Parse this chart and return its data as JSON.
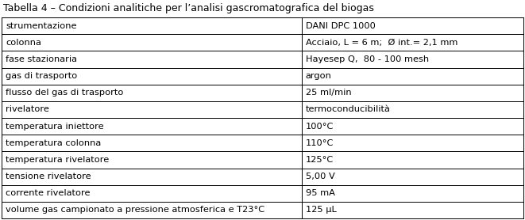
{
  "title": "Tabella 4 – Condizioni analitiche per l’analisi gascromatografica del biogas",
  "rows": [
    [
      "strumentazione",
      "DANI DPC 1000"
    ],
    [
      "colonna",
      "Acciaio, L = 6 m;  Ø int.= 2,1 mm"
    ],
    [
      "fase stazionaria",
      "Hayesep Q,  80 - 100 mesh"
    ],
    [
      "gas di trasporto",
      "argon"
    ],
    [
      "flusso del gas di trasporto",
      "25 ml/min"
    ],
    [
      "rivelatore",
      "termoconducibilità"
    ],
    [
      "temperatura iniettore",
      "100°C"
    ],
    [
      "temperatura colonna",
      "110°C"
    ],
    [
      "temperatura rivelatore",
      "125°C"
    ],
    [
      "tensione rivelatore",
      "5,00 V"
    ],
    [
      "corrente rivelatore",
      "95 mA"
    ],
    [
      "volume gas campionato a pressione atmosferica e T23°C",
      "125 μL"
    ]
  ],
  "col_split": 0.575,
  "bg_color": "#ffffff",
  "border_color": "#000000",
  "text_color": "#000000",
  "title_fontsize": 9.0,
  "cell_fontsize": 8.2
}
